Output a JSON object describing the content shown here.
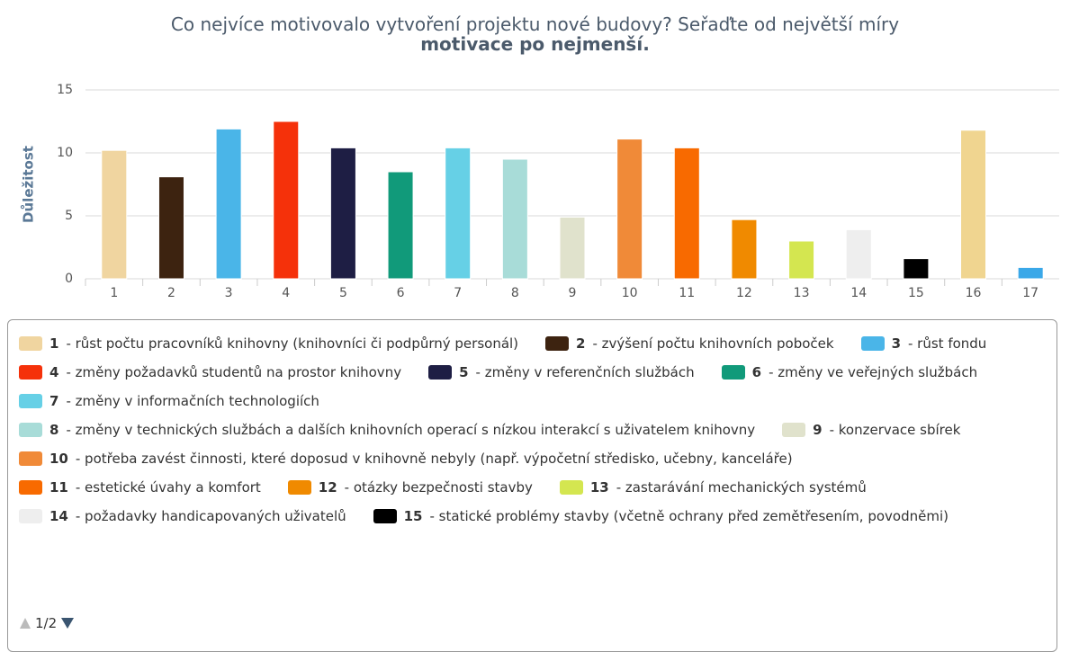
{
  "chart_data": {
    "type": "bar",
    "title": [
      "Co nejvíce motivovalo vytvoření projektu nové budovy? Seřaďte od největší míry",
      "motivace po nejmenší."
    ],
    "y_label": "Důležitost",
    "categories": [
      "1",
      "2",
      "3",
      "4",
      "5",
      "6",
      "7",
      "8",
      "9",
      "10",
      "11",
      "12",
      "13",
      "14",
      "15",
      "16",
      "17"
    ],
    "values": [
      10.2,
      8.1,
      11.9,
      12.5,
      10.4,
      8.5,
      10.4,
      9.5,
      4.9,
      11.1,
      10.4,
      4.7,
      3.0,
      3.9,
      1.6,
      11.8,
      0.9
    ],
    "colors": [
      "#f0d5a0",
      "#3d2310",
      "#4ab5e8",
      "#f5310a",
      "#1e1e44",
      "#119a7a",
      "#66d0e6",
      "#a8dcd8",
      "#e0e2cc",
      "#f08a38",
      "#f86a00",
      "#f08a00",
      "#d4e650",
      "#eeeeee",
      "#000000",
      "#f0d590",
      "#3aa8e8"
    ],
    "ylim": [
      0,
      15
    ],
    "yticks": [
      0,
      5,
      10,
      15
    ],
    "grid": true,
    "legend": [
      {
        "label": "1",
        "text": "- růst počtu pracovníků knihovny (knihovníci či podpůrný personál)"
      },
      {
        "label": "2",
        "text": "- zvýšení počtu knihovních poboček"
      },
      {
        "label": "3",
        "text": "- růst fondu"
      },
      {
        "label": "4",
        "text": "- změny požadavků studentů na prostor knihovny"
      },
      {
        "label": "5",
        "text": "- změny v referenčních službách"
      },
      {
        "label": "6",
        "text": "- změny ve veřejných službách"
      },
      {
        "label": "7",
        "text": "- změny v informačních technologiích"
      },
      {
        "label": "8",
        "text": "- změny v technických službách a dalších knihovních operací s nízkou interakcí s uživatelem knihovny"
      },
      {
        "label": "9",
        "text": "- konzervace sbírek"
      },
      {
        "label": "10",
        "text": "- potřeba zavést činnosti, které doposud v knihovně nebyly (např. výpočetní středisko, učebny, kanceláře)"
      },
      {
        "label": "11",
        "text": "- estetické úvahy a komfort"
      },
      {
        "label": "12",
        "text": "- otázky bezpečnosti stavby"
      },
      {
        "label": "13",
        "text": "- zastarávání mechanických systémů"
      },
      {
        "label": "14",
        "text": "- požadavky handicapovaných uživatelů"
      },
      {
        "label": "15",
        "text": "- statické problémy stavby (včetně ochrany před zemětřesením, povodněmi)"
      }
    ],
    "legend_page": "1/2"
  }
}
